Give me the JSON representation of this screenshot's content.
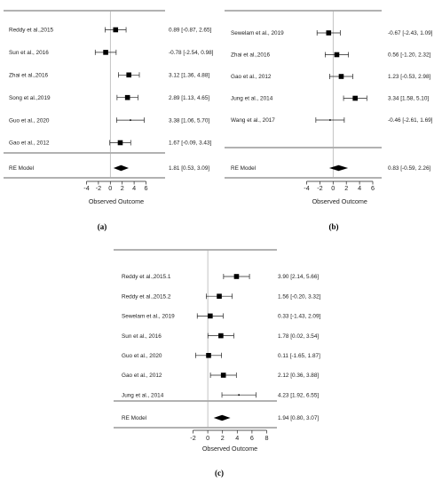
{
  "chart_data": [
    {
      "type": "forest",
      "panel_label": "(a)",
      "xlabel": "Observed Outcome",
      "xticks": [
        -4,
        -2,
        0,
        2,
        4,
        6
      ],
      "xlim": [
        -4,
        6
      ],
      "studies": [
        {
          "label": "Reddy et al.,2015",
          "estimate": 0.89,
          "lower": -0.87,
          "upper": 2.65,
          "ci_text": "0.89 [-0.87, 2.65]"
        },
        {
          "label": "Sun et al., 2016",
          "estimate": -0.78,
          "lower": -2.54,
          "upper": 0.98,
          "ci_text": "-0.78 [-2.54, 0.98]"
        },
        {
          "label": "Zhai et al.,2016",
          "estimate": 3.12,
          "lower": 1.36,
          "upper": 4.88,
          "ci_text": "3.12 [1.36, 4.88]"
        },
        {
          "label": "Song et al.,2019",
          "estimate": 2.89,
          "lower": 1.13,
          "upper": 4.65,
          "ci_text": "2.89 [1.13, 4.65]"
        },
        {
          "label": "Guo et al., 2020",
          "estimate": 3.38,
          "lower": 1.06,
          "upper": 5.7,
          "ci_text": "3.38 [1.06, 5.70]"
        },
        {
          "label": "Gao et al., 2012",
          "estimate": 1.67,
          "lower": -0.09,
          "upper": 3.43,
          "ci_text": "1.67 [-0.09, 3.43]"
        }
      ],
      "model": {
        "label": "RE Model",
        "estimate": 1.81,
        "lower": 0.53,
        "upper": 3.09,
        "ci_text": "1.81 [0.53, 3.09]"
      }
    },
    {
      "type": "forest",
      "panel_label": "(b)",
      "xlabel": "Observed Outcome",
      "xticks": [
        -4,
        -2,
        0,
        2,
        4,
        6
      ],
      "xlim": [
        -4,
        6
      ],
      "studies": [
        {
          "label": "Sewelam et al., 2019",
          "estimate": -0.67,
          "lower": -2.43,
          "upper": 1.09,
          "ci_text": "-0.67 [-2.43, 1.09]"
        },
        {
          "label": "Zhai et al.,2016",
          "estimate": 0.56,
          "lower": -1.2,
          "upper": 2.32,
          "ci_text": "0.56 [-1.20, 2.32]"
        },
        {
          "label": "Gao et al., 2012",
          "estimate": 1.23,
          "lower": -0.53,
          "upper": 2.98,
          "ci_text": "1.23 [-0.53, 2.98]"
        },
        {
          "label": "Jung et al., 2014",
          "estimate": 3.34,
          "lower": 1.58,
          "upper": 5.1,
          "ci_text": "3.34 [1.58, 5.10]"
        },
        {
          "label": "Wang et al., 2017",
          "estimate": -0.46,
          "lower": -2.61,
          "upper": 1.69,
          "ci_text": "-0.46 [-2.61, 1.69]"
        }
      ],
      "model": {
        "label": "RE Model",
        "estimate": 0.83,
        "lower": -0.59,
        "upper": 2.26,
        "ci_text": "0.83 [-0.59, 2.26]"
      }
    },
    {
      "type": "forest",
      "panel_label": "(c)",
      "xlabel": "Observed Outcome",
      "xticks": [
        -2,
        0,
        2,
        4,
        6,
        8
      ],
      "xlim": [
        -2,
        8
      ],
      "studies": [
        {
          "label": "Reddy et al.,2015.1",
          "estimate": 3.9,
          "lower": 2.14,
          "upper": 5.66,
          "ci_text": "3.90 [2.14, 5.66]"
        },
        {
          "label": "Reddy et al.,2015.2",
          "estimate": 1.56,
          "lower": -0.2,
          "upper": 3.32,
          "ci_text": "1.56 [-0.20, 3.32]"
        },
        {
          "label": "Sewelam et al., 2019",
          "estimate": 0.33,
          "lower": -1.43,
          "upper": 2.09,
          "ci_text": "0.33 [-1.43, 2.09]"
        },
        {
          "label": "Sun et al., 2016",
          "estimate": 1.78,
          "lower": 0.02,
          "upper": 3.54,
          "ci_text": "1.78 [0.02, 3.54]"
        },
        {
          "label": "Guo et al., 2020",
          "estimate": 0.11,
          "lower": -1.65,
          "upper": 1.87,
          "ci_text": "0.11 [-1.65, 1.87]"
        },
        {
          "label": "Gao et al., 2012",
          "estimate": 2.12,
          "lower": 0.36,
          "upper": 3.88,
          "ci_text": "2.12 [0.36, 3.88]"
        },
        {
          "label": "Jung et al., 2014",
          "estimate": 4.23,
          "lower": 1.92,
          "upper": 6.55,
          "ci_text": "4.23 [1.92, 6.55]"
        }
      ],
      "model": {
        "label": "RE Model",
        "estimate": 1.94,
        "lower": 0.8,
        "upper": 3.07,
        "ci_text": "1.94 [0.80, 3.07]"
      }
    }
  ]
}
